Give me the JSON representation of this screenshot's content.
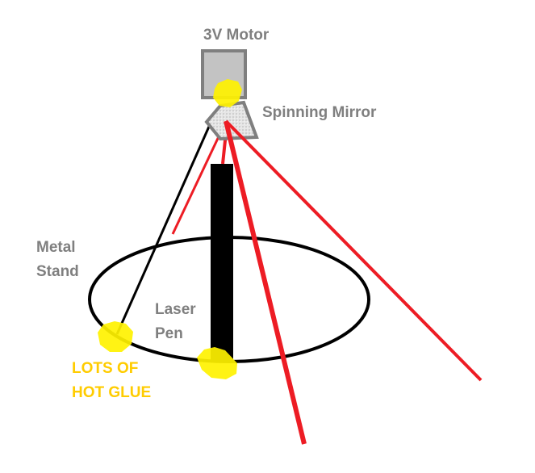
{
  "labels": {
    "motor": "3V Motor",
    "mirror": "Spinning Mirror",
    "stand_line1": "Metal",
    "stand_line2": "Stand",
    "laser_line1": "Laser",
    "laser_line2": "Pen",
    "glue_line1": "LOTS OF",
    "glue_line2": "HOT GLUE"
  },
  "colors": {
    "label_gray": "#7f7f7f",
    "glue_yellow": "#ffcc00",
    "glue_blob": "#fff200",
    "laser_red": "#ed1c24",
    "stand_black": "#000000",
    "motor_fill": "#c3c3c3",
    "motor_stroke": "#7f7f7f"
  }
}
